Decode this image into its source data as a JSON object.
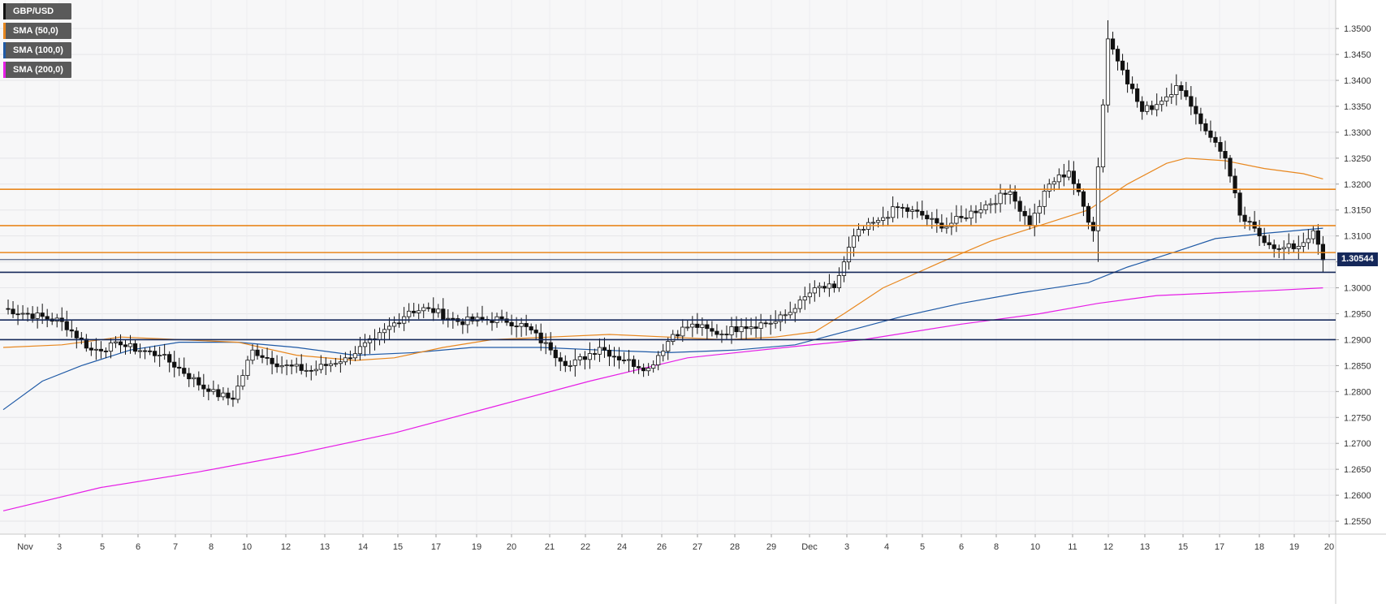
{
  "legend": [
    {
      "label": "GBP/USD",
      "color": "#111111"
    },
    {
      "label": "SMA (50,0)",
      "color": "#e8871e"
    },
    {
      "label": "SMA (100,0)",
      "color": "#1f5aa6"
    },
    {
      "label": "SMA (200,0)",
      "color": "#e61ee6"
    }
  ],
  "price_tag": {
    "label": "1.30544",
    "value": 1.30544,
    "color": "#15285a"
  },
  "chart_data": {
    "type": "candlestick",
    "symbol": "GBP/USD",
    "timeframe_hint": "4H candles, Nov 1 – Dec 19",
    "ylim": [
      1.2525,
      1.3555
    ],
    "y_ticks": [
      "1.3500",
      "1.3450",
      "1.3400",
      "1.3350",
      "1.3300",
      "1.3250",
      "1.3200",
      "1.3150",
      "1.3100",
      "1.3050",
      "1.3000",
      "1.2950",
      "1.2900",
      "1.2850",
      "1.2800",
      "1.2750",
      "1.2700",
      "1.2650",
      "1.2600",
      "1.2550"
    ],
    "x_labels": [
      "Nov",
      "3",
      "5",
      "6",
      "7",
      "8",
      "10",
      "12",
      "13",
      "14",
      "15",
      "17",
      "19",
      "20",
      "21",
      "22",
      "24",
      "26",
      "27",
      "28",
      "29",
      "Dec",
      "3",
      "4",
      "5",
      "6",
      "8",
      "10",
      "11",
      "12",
      "13",
      "15",
      "17",
      "18",
      "19",
      "20"
    ],
    "grid": true,
    "horizontal_levels": [
      {
        "value": 1.319,
        "color": "#e8871e"
      },
      {
        "value": 1.312,
        "color": "#e8871e"
      },
      {
        "value": 1.3068,
        "color": "#e8871e"
      },
      {
        "value": 1.303,
        "color": "#15285a"
      },
      {
        "value": 1.2938,
        "color": "#15285a"
      },
      {
        "value": 1.29,
        "color": "#15285a"
      }
    ],
    "anchors": [
      {
        "i": 0,
        "v": 1.296
      },
      {
        "i": 12,
        "v": 1.2935
      },
      {
        "i": 18,
        "v": 1.288
      },
      {
        "i": 24,
        "v": 1.289
      },
      {
        "i": 32,
        "v": 1.287
      },
      {
        "i": 36,
        "v": 1.2845
      },
      {
        "i": 42,
        "v": 1.28
      },
      {
        "i": 47,
        "v": 1.2785
      },
      {
        "i": 51,
        "v": 1.288
      },
      {
        "i": 57,
        "v": 1.285
      },
      {
        "i": 63,
        "v": 1.284
      },
      {
        "i": 70,
        "v": 1.2865
      },
      {
        "i": 76,
        "v": 1.29
      },
      {
        "i": 83,
        "v": 1.2955
      },
      {
        "i": 87,
        "v": 1.296
      },
      {
        "i": 93,
        "v": 1.2935
      },
      {
        "i": 102,
        "v": 1.294
      },
      {
        "i": 107,
        "v": 1.2925
      },
      {
        "i": 112,
        "v": 1.288
      },
      {
        "i": 116,
        "v": 1.285
      },
      {
        "i": 122,
        "v": 1.2885
      },
      {
        "i": 127,
        "v": 1.286
      },
      {
        "i": 132,
        "v": 1.2845
      },
      {
        "i": 137,
        "v": 1.291
      },
      {
        "i": 141,
        "v": 1.293
      },
      {
        "i": 146,
        "v": 1.291
      },
      {
        "i": 151,
        "v": 1.2925
      },
      {
        "i": 158,
        "v": 1.2935
      },
      {
        "i": 162,
        "v": 1.296
      },
      {
        "i": 166,
        "v": 1.3
      },
      {
        "i": 170,
        "v": 1.3
      },
      {
        "i": 174,
        "v": 1.31
      },
      {
        "i": 179,
        "v": 1.313
      },
      {
        "i": 183,
        "v": 1.3155
      },
      {
        "i": 188,
        "v": 1.314
      },
      {
        "i": 192,
        "v": 1.3115
      },
      {
        "i": 196,
        "v": 1.3135
      },
      {
        "i": 201,
        "v": 1.316
      },
      {
        "i": 206,
        "v": 1.3185
      },
      {
        "i": 210,
        "v": 1.312
      },
      {
        "i": 214,
        "v": 1.32
      },
      {
        "i": 218,
        "v": 1.3225
      },
      {
        "i": 223,
        "v": 1.311
      },
      {
        "i": 226,
        "v": 1.348
      },
      {
        "i": 229,
        "v": 1.342
      },
      {
        "i": 233,
        "v": 1.334
      },
      {
        "i": 237,
        "v": 1.336
      },
      {
        "i": 240,
        "v": 1.339
      },
      {
        "i": 243,
        "v": 1.335
      },
      {
        "i": 247,
        "v": 1.329
      },
      {
        "i": 250,
        "v": 1.325
      },
      {
        "i": 253,
        "v": 1.314
      },
      {
        "i": 257,
        "v": 1.31
      },
      {
        "i": 261,
        "v": 1.3075
      },
      {
        "i": 265,
        "v": 1.308
      },
      {
        "i": 268,
        "v": 1.311
      },
      {
        "i": 270,
        "v": 1.3054
      }
    ],
    "sma50": [
      [
        0,
        1.2885
      ],
      [
        12,
        1.289
      ],
      [
        24,
        1.2905
      ],
      [
        36,
        1.29
      ],
      [
        48,
        1.2895
      ],
      [
        60,
        1.287
      ],
      [
        72,
        1.286
      ],
      [
        80,
        1.2865
      ],
      [
        90,
        1.2885
      ],
      [
        100,
        1.29
      ],
      [
        112,
        1.2905
      ],
      [
        124,
        1.291
      ],
      [
        136,
        1.2905
      ],
      [
        148,
        1.29
      ],
      [
        158,
        1.2905
      ],
      [
        166,
        1.2915
      ],
      [
        172,
        1.295
      ],
      [
        180,
        1.3
      ],
      [
        192,
        1.305
      ],
      [
        202,
        1.309
      ],
      [
        212,
        1.312
      ],
      [
        222,
        1.315
      ],
      [
        230,
        1.32
      ],
      [
        238,
        1.324
      ],
      [
        242,
        1.325
      ],
      [
        250,
        1.3245
      ],
      [
        258,
        1.323
      ],
      [
        266,
        1.322
      ],
      [
        270,
        1.321
      ]
    ],
    "sma100": [
      [
        0,
        1.2765
      ],
      [
        8,
        1.282
      ],
      [
        16,
        1.285
      ],
      [
        26,
        1.288
      ],
      [
        36,
        1.2895
      ],
      [
        48,
        1.2895
      ],
      [
        60,
        1.2885
      ],
      [
        72,
        1.287
      ],
      [
        84,
        1.2875
      ],
      [
        96,
        1.2885
      ],
      [
        110,
        1.2885
      ],
      [
        122,
        1.288
      ],
      [
        136,
        1.2875
      ],
      [
        150,
        1.288
      ],
      [
        162,
        1.289
      ],
      [
        172,
        1.2915
      ],
      [
        184,
        1.2945
      ],
      [
        196,
        1.297
      ],
      [
        208,
        1.299
      ],
      [
        222,
        1.301
      ],
      [
        230,
        1.304
      ],
      [
        240,
        1.307
      ],
      [
        248,
        1.3095
      ],
      [
        258,
        1.3105
      ],
      [
        270,
        1.3115
      ]
    ],
    "sma200": [
      [
        0,
        1.257
      ],
      [
        20,
        1.2615
      ],
      [
        40,
        1.2645
      ],
      [
        60,
        1.268
      ],
      [
        80,
        1.272
      ],
      [
        100,
        1.277
      ],
      [
        120,
        1.282
      ],
      [
        140,
        1.2865
      ],
      [
        160,
        1.2885
      ],
      [
        176,
        1.29
      ],
      [
        196,
        1.293
      ],
      [
        212,
        1.295
      ],
      [
        224,
        1.297
      ],
      [
        236,
        1.2985
      ],
      [
        248,
        1.299
      ],
      [
        260,
        1.2995
      ],
      [
        270,
        1.3
      ]
    ]
  }
}
